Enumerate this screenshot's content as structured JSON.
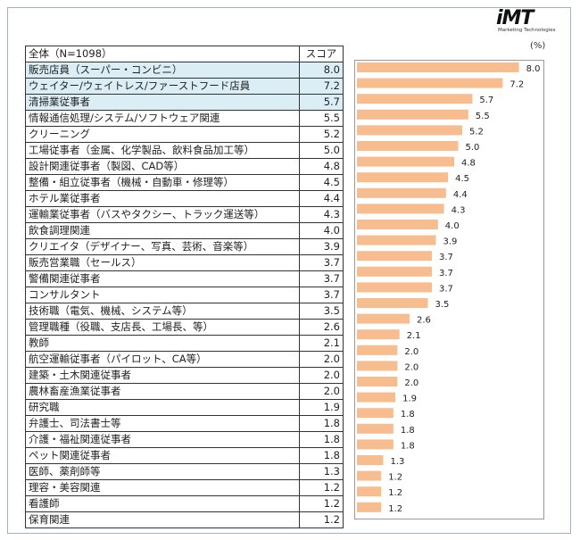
{
  "header": {
    "logo_text": "iMT",
    "logo_subtext": "Marketing Technologies",
    "unit": "(%)"
  },
  "table": {
    "col_label": "全体（N=1098）",
    "col_score": "スコア",
    "highlight_rows": [
      0,
      1,
      2
    ]
  },
  "colors": {
    "bar": "#f7bd8e",
    "highlight": "#dbeef6"
  },
  "chart_data": {
    "type": "bar",
    "orientation": "horizontal",
    "categories": [
      "販売店員（スーパー・コンビニ）",
      "ウェイター/ウェイトレス/ファーストフード店員",
      "清掃業従事者",
      "情報通信処理/システム/ソフトウェア関連",
      "クリーニング",
      "工場従事者（金属、化学製品、飲料食品加工等）",
      "設計関連従事者（製図、CAD等）",
      "整備・組立従事者（機械・自動車・修理等）",
      "ホテル業従事者",
      "運輸業従事者（バスやタクシー、トラック運送等）",
      "飲食調理関連",
      "クリエイタ（デザイナー、写真、芸術、音楽等）",
      "販売営業職（セールス）",
      "警備関連従事者",
      "コンサルタント",
      "技術職（電気、機械、システム等）",
      "管理職種（役職、支店長、工場長、等）",
      "教師",
      "航空運輸従事者（パイロット、CA等）",
      "建築・土木関連従事者",
      "農林畜産漁業従事者",
      "研究職",
      "弁護士、司法書士等",
      "介護・福祉関連従事者",
      "ペット関連従事者",
      "医師、薬剤師等",
      "理容・美容関連",
      "看護師",
      "保育関連"
    ],
    "values": [
      8.0,
      7.2,
      5.7,
      5.5,
      5.2,
      5.0,
      4.8,
      4.5,
      4.4,
      4.3,
      4.0,
      3.9,
      3.7,
      3.7,
      3.7,
      3.5,
      2.6,
      2.1,
      2.0,
      2.0,
      2.0,
      1.9,
      1.8,
      1.8,
      1.8,
      1.3,
      1.2,
      1.2,
      1.2
    ],
    "value_labels": [
      "8.0",
      "7.2",
      "5.7",
      "5.5",
      "5.2",
      "5.0",
      "4.8",
      "4.5",
      "4.4",
      "4.3",
      "4.0",
      "3.9",
      "3.7",
      "3.7",
      "3.7",
      "3.5",
      "2.6",
      "2.1",
      "2.0",
      "2.0",
      "2.0",
      "1.9",
      "1.8",
      "1.8",
      "1.8",
      "1.3",
      "1.2",
      "1.2",
      "1.2"
    ],
    "xlim": [
      0,
      9
    ],
    "grid": false
  }
}
